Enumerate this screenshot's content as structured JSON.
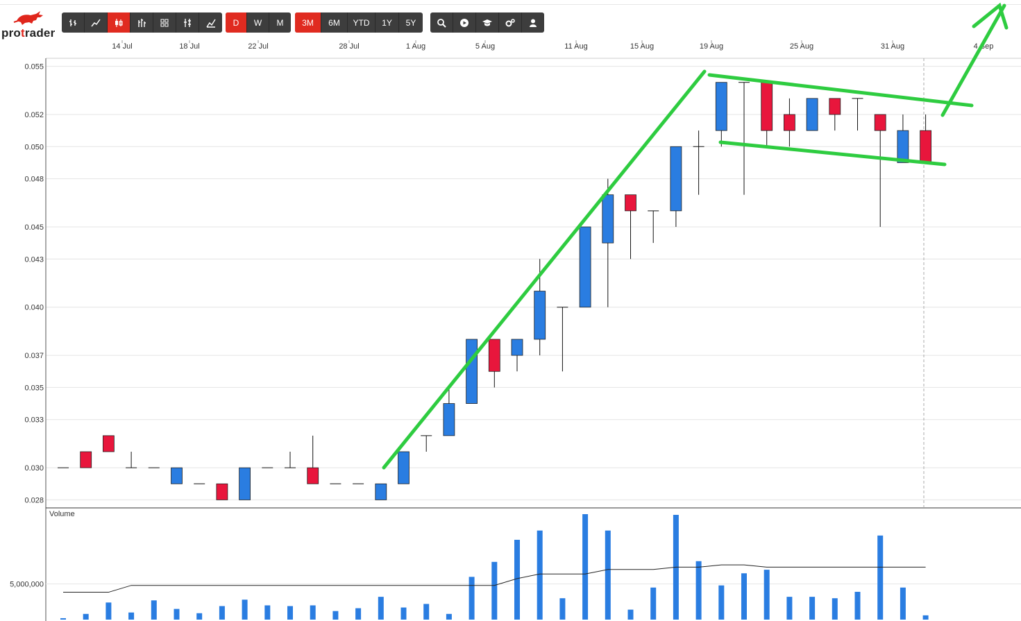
{
  "brand": {
    "name_a": "pro",
    "name_b": "t",
    "name_c": "rader"
  },
  "toolbar": {
    "chart_types": [
      {
        "icon": "ohlc-icon",
        "active": false
      },
      {
        "icon": "line-icon",
        "active": false
      },
      {
        "icon": "candlestick-icon",
        "active": true
      },
      {
        "icon": "hlc-icon",
        "active": false
      },
      {
        "icon": "heikin-ashi-icon",
        "active": false
      },
      {
        "icon": "renko-icon",
        "active": false
      },
      {
        "icon": "mountain-icon",
        "active": false
      }
    ],
    "intervals": [
      {
        "label": "D",
        "active": true
      },
      {
        "label": "W",
        "active": false
      },
      {
        "label": "M",
        "active": false
      }
    ],
    "ranges": [
      {
        "label": "3M",
        "active": true
      },
      {
        "label": "6M",
        "active": false
      },
      {
        "label": "YTD",
        "active": false
      },
      {
        "label": "1Y",
        "active": false
      },
      {
        "label": "5Y",
        "active": false
      }
    ],
    "tools": [
      {
        "icon": "search-icon"
      },
      {
        "icon": "play-icon"
      },
      {
        "icon": "graduation-cap-icon"
      },
      {
        "icon": "settings-icon"
      },
      {
        "icon": "user-icon"
      }
    ]
  },
  "chart_data": {
    "type": "candlestick",
    "up_color": "#2a7de1",
    "down_color": "#e8163c",
    "x_ticks": [
      "14 Jul",
      "18 Jul",
      "22 Jul",
      "28 Jul",
      "1 Aug",
      "5 Aug",
      "11 Aug",
      "15 Aug",
      "19 Aug",
      "25 Aug",
      "31 Aug",
      "4 Sep"
    ],
    "y_ticks": [
      "0.055",
      "0.052",
      "0.050",
      "0.048",
      "0.045",
      "0.043",
      "0.040",
      "0.037",
      "0.035",
      "0.033",
      "0.030",
      "0.028"
    ],
    "ylim": [
      0.0275,
      0.0555
    ],
    "candles": [
      {
        "o": 0.03,
        "h": 0.03,
        "l": 0.03,
        "c": 0.03
      },
      {
        "o": 0.031,
        "h": 0.031,
        "l": 0.03,
        "c": 0.03
      },
      {
        "o": 0.032,
        "h": 0.032,
        "l": 0.031,
        "c": 0.031
      },
      {
        "o": 0.03,
        "h": 0.031,
        "l": 0.03,
        "c": 0.03
      },
      {
        "o": 0.03,
        "h": 0.03,
        "l": 0.03,
        "c": 0.03
      },
      {
        "o": 0.029,
        "h": 0.03,
        "l": 0.029,
        "c": 0.03
      },
      {
        "o": 0.029,
        "h": 0.029,
        "l": 0.029,
        "c": 0.029
      },
      {
        "o": 0.029,
        "h": 0.029,
        "l": 0.028,
        "c": 0.028
      },
      {
        "o": 0.028,
        "h": 0.03,
        "l": 0.028,
        "c": 0.03
      },
      {
        "o": 0.03,
        "h": 0.03,
        "l": 0.03,
        "c": 0.03
      },
      {
        "o": 0.03,
        "h": 0.031,
        "l": 0.03,
        "c": 0.03
      },
      {
        "o": 0.03,
        "h": 0.032,
        "l": 0.029,
        "c": 0.029
      },
      {
        "o": 0.029,
        "h": 0.029,
        "l": 0.029,
        "c": 0.029
      },
      {
        "o": 0.029,
        "h": 0.029,
        "l": 0.029,
        "c": 0.029
      },
      {
        "o": 0.028,
        "h": 0.029,
        "l": 0.028,
        "c": 0.029
      },
      {
        "o": 0.029,
        "h": 0.031,
        "l": 0.029,
        "c": 0.031
      },
      {
        "o": 0.032,
        "h": 0.032,
        "l": 0.031,
        "c": 0.032
      },
      {
        "o": 0.032,
        "h": 0.035,
        "l": 0.032,
        "c": 0.034
      },
      {
        "o": 0.034,
        "h": 0.038,
        "l": 0.034,
        "c": 0.038
      },
      {
        "o": 0.038,
        "h": 0.038,
        "l": 0.035,
        "c": 0.036
      },
      {
        "o": 0.037,
        "h": 0.038,
        "l": 0.036,
        "c": 0.038
      },
      {
        "o": 0.038,
        "h": 0.043,
        "l": 0.037,
        "c": 0.041
      },
      {
        "o": 0.04,
        "h": 0.04,
        "l": 0.036,
        "c": 0.04
      },
      {
        "o": 0.04,
        "h": 0.045,
        "l": 0.04,
        "c": 0.045
      },
      {
        "o": 0.044,
        "h": 0.048,
        "l": 0.04,
        "c": 0.047
      },
      {
        "o": 0.047,
        "h": 0.047,
        "l": 0.043,
        "c": 0.046
      },
      {
        "o": 0.046,
        "h": 0.046,
        "l": 0.044,
        "c": 0.046
      },
      {
        "o": 0.046,
        "h": 0.05,
        "l": 0.045,
        "c": 0.05
      },
      {
        "o": 0.05,
        "h": 0.051,
        "l": 0.047,
        "c": 0.05
      },
      {
        "o": 0.051,
        "h": 0.054,
        "l": 0.05,
        "c": 0.054
      },
      {
        "o": 0.054,
        "h": 0.054,
        "l": 0.047,
        "c": 0.054
      },
      {
        "o": 0.054,
        "h": 0.054,
        "l": 0.05,
        "c": 0.051
      },
      {
        "o": 0.052,
        "h": 0.053,
        "l": 0.05,
        "c": 0.051
      },
      {
        "o": 0.051,
        "h": 0.053,
        "l": 0.051,
        "c": 0.053
      },
      {
        "o": 0.053,
        "h": 0.053,
        "l": 0.051,
        "c": 0.052
      },
      {
        "o": 0.053,
        "h": 0.053,
        "l": 0.051,
        "c": 0.053
      },
      {
        "o": 0.052,
        "h": 0.052,
        "l": 0.045,
        "c": 0.051
      },
      {
        "o": 0.049,
        "h": 0.052,
        "l": 0.049,
        "c": 0.051
      },
      {
        "o": 0.051,
        "h": 0.052,
        "l": 0.049,
        "c": 0.049
      }
    ],
    "volume_label": "Volume",
    "volume_ticks": [
      "5,000,000"
    ],
    "volume_max": 7500000,
    "volume": [
      200000,
      800000,
      2400000,
      1000000,
      2700000,
      1500000,
      900000,
      1900000,
      2800000,
      2000000,
      1900000,
      2000000,
      1200000,
      1600000,
      3200000,
      1700000,
      2200000,
      800000,
      6000000,
      8100000,
      11200000,
      12500000,
      3000000,
      14800000,
      12500000,
      1400000,
      4500000,
      14700000,
      8200000,
      4800000,
      6500000,
      7000000,
      3200000,
      3200000,
      3000000,
      3900000,
      11800000,
      4500000,
      600000
    ],
    "volume_avg": [
      1200000,
      1200000,
      1200000,
      1500000,
      1500000,
      1500000,
      1500000,
      1500000,
      1500000,
      1500000,
      1500000,
      1500000,
      1500000,
      1500000,
      1500000,
      1500000,
      1500000,
      1500000,
      1500000,
      1500000,
      1800000,
      2000000,
      2000000,
      2000000,
      2200000,
      2200000,
      2200000,
      2300000,
      2300000,
      2400000,
      2400000,
      2300000,
      2300000,
      2300000,
      2300000,
      2300000,
      2300000,
      2300000,
      2300000
    ]
  },
  "annotations": {
    "color": "#2ecc40"
  }
}
